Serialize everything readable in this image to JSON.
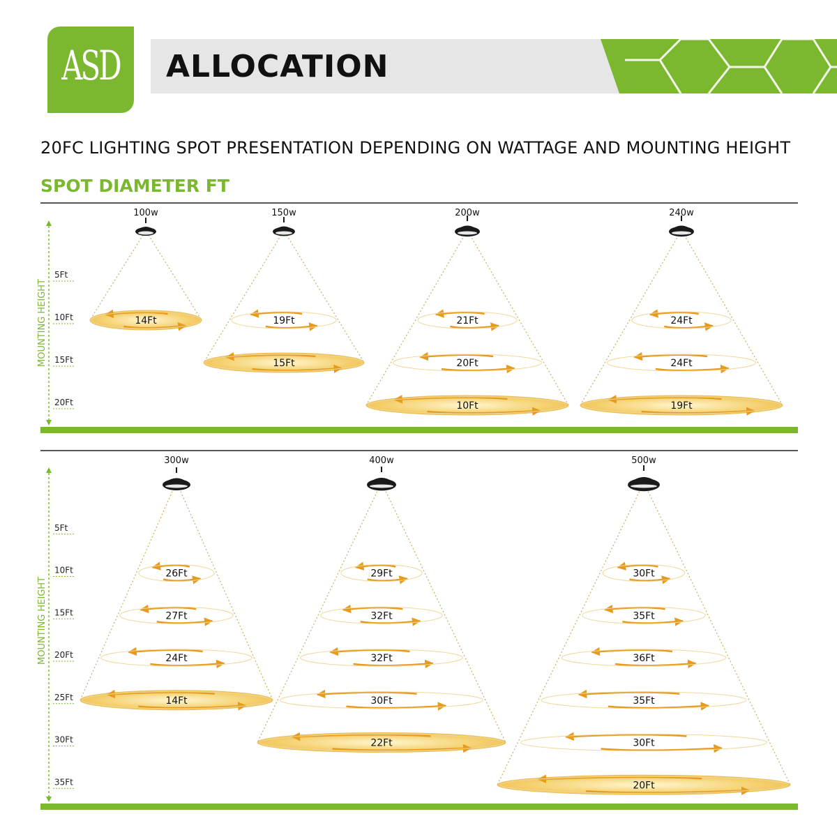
{
  "brand": {
    "logo_text": "ASD",
    "title": "ALLOCATION"
  },
  "subtitle": "20FC LIGHTING SPOT PRESENTATION DEPENDING  ON WATTAGE AND MOUNTING HEIGHT",
  "section_label": "SPOT DIAMETER FT",
  "axis_label": "MOUNTING HEIGHT",
  "colors": {
    "accent": "#7cb82f",
    "light_fill": "#f6d57a",
    "arrow": "#e69a1e",
    "dark": "#1a1a1a"
  },
  "panels": [
    {
      "height_ticks": [
        "5Ft",
        "10Ft",
        "15Ft",
        "20Ft"
      ],
      "height_values": [
        5,
        10,
        15,
        20
      ],
      "lights": [
        {
          "wattage": "100w",
          "spots": [
            {
              "height": 10,
              "label": "14Ft"
            }
          ]
        },
        {
          "wattage": "150w",
          "spots": [
            {
              "height": 10,
              "label": "19Ft"
            },
            {
              "height": 15,
              "label": "15Ft"
            }
          ]
        },
        {
          "wattage": "200w",
          "spots": [
            {
              "height": 10,
              "label": "21Ft"
            },
            {
              "height": 15,
              "label": "20Ft"
            },
            {
              "height": 20,
              "label": "10Ft"
            }
          ]
        },
        {
          "wattage": "240w",
          "spots": [
            {
              "height": 10,
              "label": "24Ft"
            },
            {
              "height": 15,
              "label": "24Ft"
            },
            {
              "height": 20,
              "label": "19Ft"
            }
          ]
        }
      ]
    },
    {
      "height_ticks": [
        "5Ft",
        "10Ft",
        "15Ft",
        "20Ft",
        "25Ft",
        "30Ft",
        "35Ft"
      ],
      "height_values": [
        5,
        10,
        15,
        20,
        25,
        30,
        35
      ],
      "lights": [
        {
          "wattage": "300w",
          "spots": [
            {
              "height": 10,
              "label": "26Ft"
            },
            {
              "height": 15,
              "label": "27Ft"
            },
            {
              "height": 20,
              "label": "24Ft"
            },
            {
              "height": 25,
              "label": "14Ft"
            }
          ]
        },
        {
          "wattage": "400w",
          "spots": [
            {
              "height": 10,
              "label": "29Ft"
            },
            {
              "height": 15,
              "label": "32Ft"
            },
            {
              "height": 20,
              "label": "32Ft"
            },
            {
              "height": 25,
              "label": "30Ft"
            },
            {
              "height": 30,
              "label": "22Ft"
            }
          ]
        },
        {
          "wattage": "500w",
          "spots": [
            {
              "height": 10,
              "label": "30Ft"
            },
            {
              "height": 15,
              "label": "35Ft"
            },
            {
              "height": 20,
              "label": "36Ft"
            },
            {
              "height": 25,
              "label": "35Ft"
            },
            {
              "height": 30,
              "label": "30Ft"
            },
            {
              "height": 35,
              "label": "20Ft"
            }
          ]
        }
      ]
    }
  ]
}
